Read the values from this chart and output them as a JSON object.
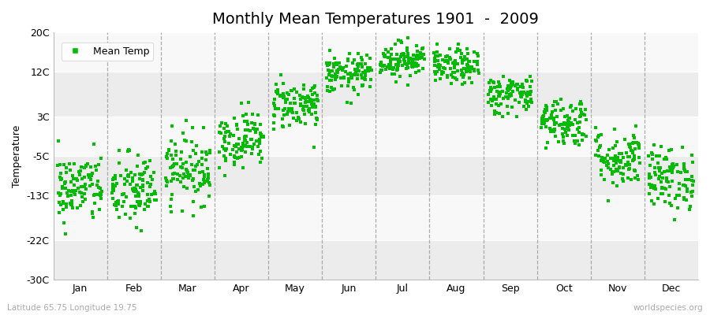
{
  "title": "Monthly Mean Temperatures 1901  -  2009",
  "ylabel": "Temperature",
  "xlabel_bottom_left": "Latitude 65.75 Longitude 19.75",
  "xlabel_bottom_right": "worldspecies.org",
  "legend_label": "Mean Temp",
  "dot_color": "#00bb00",
  "dot_size": 8,
  "background_color": "#ffffff",
  "plot_bg_color": "#f2f2f2",
  "dashed_line_color": "#999999",
  "title_fontsize": 14,
  "label_fontsize": 9,
  "tick_fontsize": 9,
  "n_years": 109,
  "months": [
    "Jan",
    "Feb",
    "Mar",
    "Apr",
    "May",
    "Jun",
    "Jul",
    "Aug",
    "Sep",
    "Oct",
    "Nov",
    "Dec"
  ],
  "month_means": [
    -11.5,
    -12.0,
    -7.5,
    -1.5,
    5.5,
    11.5,
    14.5,
    13.0,
    7.5,
    2.0,
    -5.5,
    -9.5
  ],
  "month_stds": [
    3.5,
    3.8,
    3.5,
    2.8,
    2.5,
    2.0,
    1.8,
    1.8,
    2.0,
    2.5,
    3.0,
    3.2
  ],
  "ylim": [
    -30,
    20
  ],
  "yticks": [
    -30,
    -22,
    -13,
    -5,
    3,
    12,
    20
  ],
  "ytick_labels": [
    "-30C",
    "-22C",
    "-13C",
    "-5C",
    "3C",
    "12C",
    "20C"
  ],
  "band_colors": [
    "#ececec",
    "#f8f8f8",
    "#ececec",
    "#f8f8f8",
    "#ececec",
    "#f8f8f8"
  ]
}
